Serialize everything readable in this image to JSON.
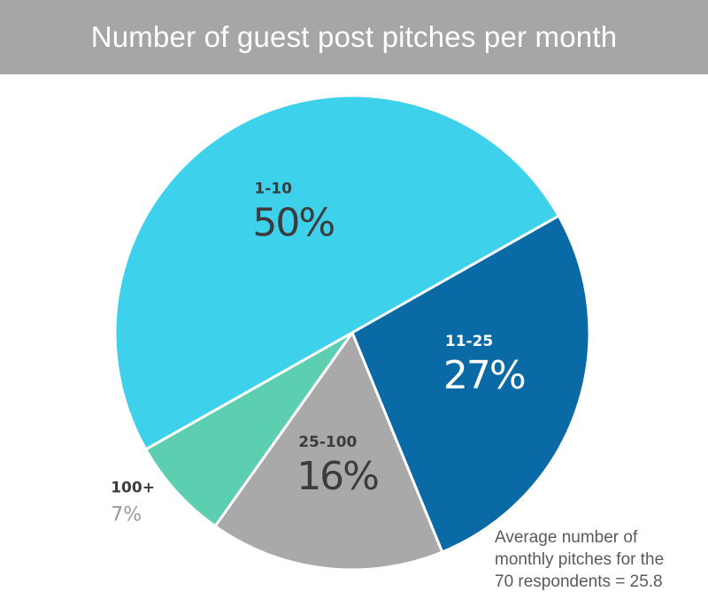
{
  "header": {
    "title": "Number of guest post pitches per month"
  },
  "chart_data": {
    "type": "pie",
    "title": "Number of guest post pitches per month",
    "categories": [
      "1-10",
      "11-25",
      "25-100",
      "100+"
    ],
    "values": [
      50,
      27,
      16,
      7
    ],
    "labels": [
      "50%",
      "27%",
      "16%",
      "7%"
    ],
    "colors": [
      "#3dd1ec",
      "#0a6aa6",
      "#a9a9a9",
      "#5ccfb0"
    ],
    "label_colors": {
      "category": [
        "#3c3c3c",
        "#ffffff",
        "#3c3c3c",
        "#3c3c3c"
      ],
      "percent": [
        "#3c3c3c",
        "#ffffff",
        "#3c3c3c",
        "#9a9a9a"
      ]
    }
  },
  "note": {
    "line1": "Average number of",
    "line2": "monthly pitches for the",
    "line3": "70 respondents = 25.8"
  }
}
